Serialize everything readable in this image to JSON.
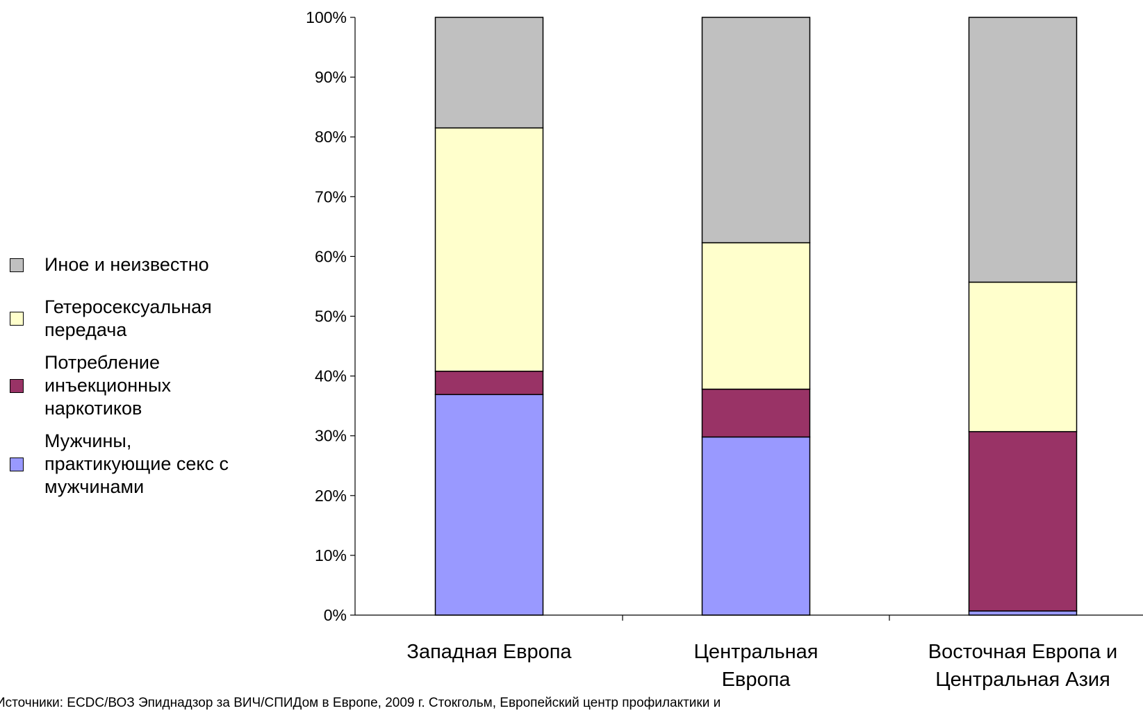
{
  "source_text": "Источники: ECDC/ВОЗ Эпиднадзор за ВИЧ/СПИДом в Европе, 2009 г. Стокгольм, Европейский центр профилактики и",
  "chart_data": {
    "type": "bar",
    "stacked": true,
    "ylim": [
      0,
      100
    ],
    "yticks": [
      "0%",
      "10%",
      "20%",
      "30%",
      "40%",
      "50%",
      "60%",
      "70%",
      "80%",
      "90%",
      "100%"
    ],
    "categories": [
      "Западная Европа",
      "Центральная Европа",
      "Восточная Европа и Центральная Азия"
    ],
    "series": [
      {
        "name": "Мужчины, практикующие секс с мужчинами",
        "color": "#9999ff",
        "values": [
          36.9,
          29.8,
          0.7
        ]
      },
      {
        "name": "Потребление инъекционных наркотиков",
        "color": "#993366",
        "values": [
          3.9,
          8.0,
          30.0
        ]
      },
      {
        "name": "Гетеросексуальная передача",
        "color": "#ffffcc",
        "values": [
          40.7,
          24.5,
          25.0
        ]
      },
      {
        "name": "Иное и неизвестно",
        "color": "#c0c0c0",
        "values": [
          18.5,
          37.7,
          44.3
        ]
      }
    ],
    "legend_order": [
      3,
      2,
      1,
      0
    ],
    "legend_position": "left",
    "grid": false
  }
}
